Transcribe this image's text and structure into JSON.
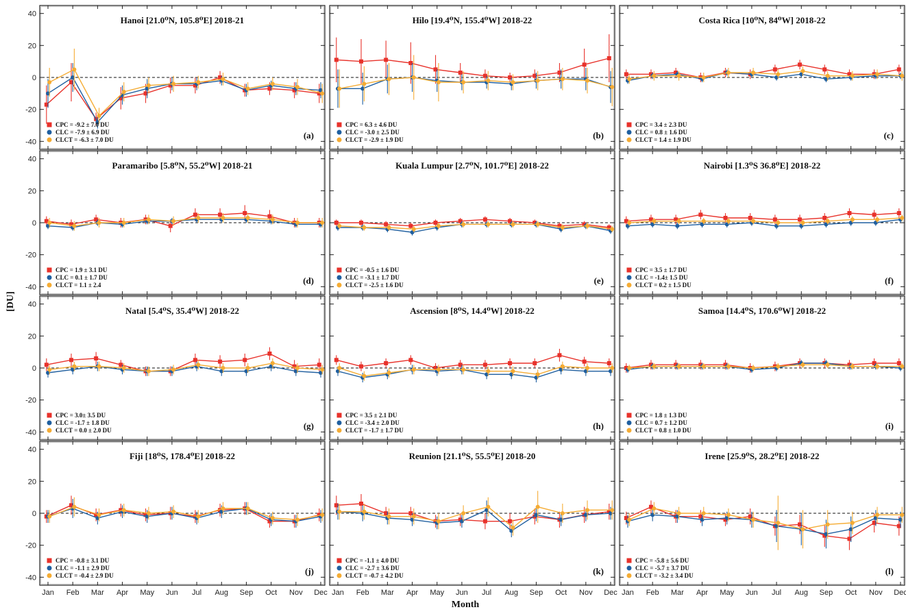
{
  "figure": {
    "ylabel": "[DU]",
    "xlabel": "Month",
    "months": [
      "Jan",
      "Feb",
      "Mar",
      "Apr",
      "May",
      "Jun",
      "Jul",
      "Aug",
      "Sep",
      "Oct",
      "Nov",
      "Dec"
    ],
    "yticks": [
      40,
      20,
      0,
      -20,
      -40
    ],
    "ylim": [
      -45,
      45
    ],
    "reference_line": 0
  },
  "series_styles": [
    {
      "key": "CPC",
      "color": "#e8322b",
      "marker": "square"
    },
    {
      "key": "CLC",
      "color": "#1f5fa0",
      "marker": "circle"
    },
    {
      "key": "CLCT",
      "color": "#f5ac34",
      "marker": "circle"
    }
  ],
  "chart_data": [
    {
      "type": "line",
      "panel": "(a)",
      "title": "Hanoi [21.0⁰N, 105.8⁰E] 2018-21",
      "stats": [
        "CPC = -9.2 ± 7.0 DU",
        "CLC = -7.9 ± 6.9 DU",
        "CLCT = -6.3 ± 7.0 DU"
      ],
      "series": [
        {
          "values": [
            -17,
            -3,
            -26,
            -13,
            -10,
            -5,
            -5,
            0,
            -8,
            -7,
            -8,
            -10
          ],
          "err": [
            12,
            12,
            4,
            7,
            6,
            5,
            5,
            4,
            4,
            4,
            5,
            6
          ]
        },
        {
          "values": [
            -10,
            0,
            -28,
            -11,
            -7,
            -4,
            -4,
            -2,
            -8,
            -5,
            -7,
            -8
          ],
          "err": [
            9,
            9,
            4,
            6,
            6,
            4,
            4,
            3,
            4,
            3,
            4,
            5
          ]
        },
        {
          "values": [
            -3,
            5,
            -24,
            -9,
            -5,
            -4,
            -3,
            -1,
            -7,
            -4,
            -6,
            -10
          ],
          "err": [
            9,
            13,
            5,
            6,
            5,
            5,
            4,
            4,
            4,
            4,
            5,
            6
          ]
        }
      ]
    },
    {
      "type": "line",
      "panel": "(b)",
      "title": "Hilo [19.4⁰N, 155.4⁰W] 2018-22",
      "stats": [
        "CPC = 6.3 ± 4.6 DU",
        "CLC = -3.0 ± 2.5 DU",
        "CLCT = -2.9 ± 1.9 DU"
      ],
      "series": [
        {
          "values": [
            11,
            10,
            11,
            9,
            5,
            3,
            1,
            0,
            1,
            3,
            8,
            12
          ],
          "err": [
            14,
            14,
            12,
            13,
            9,
            6,
            4,
            3,
            4,
            6,
            10,
            15
          ]
        },
        {
          "values": [
            -7,
            -7,
            -1,
            0,
            -2,
            -3,
            -3,
            -4,
            -2,
            -1,
            -1,
            -6
          ],
          "err": [
            12,
            10,
            9,
            9,
            7,
            5,
            4,
            4,
            5,
            6,
            7,
            10
          ]
        },
        {
          "values": [
            -7,
            -4,
            -1,
            0,
            -3,
            -3,
            -2,
            -3,
            -2,
            -1,
            -2,
            -6
          ],
          "err": [
            12,
            11,
            10,
            14,
            12,
            7,
            6,
            5,
            6,
            7,
            8,
            12
          ]
        }
      ]
    },
    {
      "type": "line",
      "panel": "(c)",
      "title": "Costa Rica [10⁰N, 84⁰W] 2018-22",
      "stats": [
        "CPC = 3.4 ± 2.3 DU",
        "CLC = 0.8 ± 1.6 DU",
        "CLCT = 1.4 ± 1.9 DU"
      ],
      "series": [
        {
          "values": [
            2,
            2,
            3,
            0,
            3,
            2,
            5,
            8,
            5,
            2,
            2,
            5
          ],
          "err": [
            3,
            3,
            3,
            3,
            3,
            3,
            3,
            3,
            3,
            3,
            3,
            3
          ]
        },
        {
          "values": [
            -2,
            1,
            2,
            -1,
            3,
            2,
            0,
            2,
            -1,
            0,
            1,
            1
          ],
          "err": [
            2,
            2,
            2,
            2,
            2,
            2,
            2,
            2,
            2,
            2,
            2,
            2
          ]
        },
        {
          "values": [
            -1,
            1,
            1,
            0,
            3,
            3,
            2,
            4,
            1,
            1,
            2,
            1
          ],
          "err": [
            3,
            3,
            3,
            3,
            3,
            3,
            3,
            3,
            3,
            3,
            3,
            3
          ]
        }
      ]
    },
    {
      "type": "line",
      "panel": "(d)",
      "title": "Paramaribo [5.8⁰N, 55.2⁰W] 2018-21",
      "stats": [
        "CPC = 1.9 ± 3.1 DU",
        "CLC = 0.1 ± 1.7 DU",
        "CLCT = 1.1 ± 2.4"
      ],
      "series": [
        {
          "values": [
            1,
            -1,
            2,
            0,
            2,
            -2,
            5,
            5,
            6,
            4,
            0,
            0
          ],
          "err": [
            3,
            3,
            3,
            3,
            3,
            4,
            4,
            4,
            5,
            4,
            3,
            3
          ]
        },
        {
          "values": [
            -2,
            -3,
            0,
            -1,
            1,
            1,
            2,
            2,
            2,
            1,
            -1,
            -1
          ],
          "err": [
            2,
            2,
            2,
            2,
            2,
            2,
            2,
            2,
            2,
            2,
            2,
            2
          ]
        },
        {
          "values": [
            0,
            -2,
            0,
            0,
            2,
            1,
            3,
            3,
            3,
            2,
            0,
            0
          ],
          "err": [
            3,
            3,
            3,
            3,
            3,
            3,
            3,
            3,
            3,
            3,
            3,
            3
          ]
        }
      ]
    },
    {
      "type": "line",
      "panel": "(e)",
      "title": "Kuala Lumpur [2.7⁰N, 101.7⁰E] 2018-22",
      "stats": [
        "CPC = -0.5 ± 1.6 DU",
        "CLC = -3.1 ± 1.7 DU",
        "CLCT = -2.5 ± 1.6 DU"
      ],
      "series": [
        {
          "values": [
            0,
            0,
            -1,
            -2,
            0,
            1,
            2,
            1,
            0,
            -2,
            -1,
            -3
          ],
          "err": [
            2,
            2,
            2,
            2,
            2,
            2,
            2,
            2,
            2,
            2,
            2,
            2
          ]
        },
        {
          "values": [
            -3,
            -3,
            -4,
            -6,
            -3,
            -1,
            -1,
            -1,
            -1,
            -4,
            -2,
            -5
          ],
          "err": [
            2,
            2,
            2,
            2,
            2,
            2,
            2,
            2,
            2,
            2,
            2,
            2
          ]
        },
        {
          "values": [
            -2,
            -3,
            -3,
            -4,
            -2,
            -1,
            -1,
            -1,
            -1,
            -3,
            -2,
            -4
          ],
          "err": [
            2,
            2,
            2,
            2,
            2,
            2,
            2,
            2,
            2,
            2,
            2,
            2
          ]
        }
      ]
    },
    {
      "type": "line",
      "panel": "(f)",
      "title": "Nairobi [1.3⁰S 36.8⁰E] 2018-22",
      "stats": [
        "CPC = 3.5 ± 1.7 DU",
        "CLC = -1.4± 1.5 DU",
        "CLCT = 0.2 ± 1.5 DU"
      ],
      "series": [
        {
          "values": [
            1,
            2,
            2,
            5,
            3,
            3,
            2,
            2,
            3,
            6,
            5,
            6
          ],
          "err": [
            3,
            3,
            3,
            3,
            3,
            3,
            3,
            3,
            3,
            3,
            3,
            3
          ]
        },
        {
          "values": [
            -2,
            -1,
            -2,
            -1,
            -1,
            0,
            -2,
            -2,
            -1,
            0,
            0,
            2
          ],
          "err": [
            2,
            2,
            2,
            2,
            2,
            2,
            2,
            2,
            2,
            2,
            2,
            2
          ]
        },
        {
          "values": [
            0,
            1,
            1,
            1,
            1,
            1,
            0,
            0,
            1,
            2,
            2,
            3
          ],
          "err": [
            2,
            2,
            2,
            2,
            2,
            2,
            2,
            2,
            2,
            2,
            2,
            2
          ]
        }
      ]
    },
    {
      "type": "line",
      "panel": "(g)",
      "title": "Natal [5.4⁰S, 35.4⁰W] 2018-22",
      "stats": [
        "CPC = 3.0± 3.5 DU",
        "CLC = -1.7 ± 1.8 DU",
        "CLCT = 0.0 ± 2.0 DU"
      ],
      "series": [
        {
          "values": [
            2,
            5,
            6,
            2,
            -2,
            -2,
            5,
            4,
            5,
            9,
            1,
            2
          ],
          "err": [
            4,
            4,
            4,
            3,
            3,
            3,
            4,
            4,
            4,
            4,
            4,
            4
          ]
        },
        {
          "values": [
            -3,
            -1,
            1,
            -1,
            -2,
            -2,
            1,
            -2,
            -2,
            1,
            -2,
            -3
          ],
          "err": [
            3,
            3,
            3,
            3,
            3,
            3,
            3,
            3,
            3,
            3,
            3,
            3
          ]
        },
        {
          "values": [
            -1,
            1,
            1,
            0,
            -2,
            -1,
            2,
            0,
            0,
            3,
            0,
            -1
          ],
          "err": [
            3,
            3,
            3,
            3,
            3,
            3,
            3,
            3,
            3,
            3,
            3,
            3
          ]
        }
      ]
    },
    {
      "type": "line",
      "panel": "(h)",
      "title": "Ascension [8⁰S, 14.4⁰W] 2018-22",
      "stats": [
        "CPC = 3.5 ± 2.1 DU",
        "CLC = -3.4 ± 2.0 DU",
        "CLCT = -1.7 ± 1.7 DU"
      ],
      "series": [
        {
          "values": [
            5,
            1,
            3,
            5,
            0,
            2,
            2,
            3,
            3,
            8,
            4,
            3
          ],
          "err": [
            3,
            3,
            3,
            3,
            3,
            3,
            3,
            3,
            3,
            4,
            3,
            3
          ]
        },
        {
          "values": [
            -2,
            -6,
            -4,
            -1,
            -2,
            -1,
            -4,
            -4,
            -6,
            -1,
            -2,
            -2
          ],
          "err": [
            3,
            3,
            3,
            3,
            3,
            3,
            3,
            3,
            3,
            3,
            3,
            3
          ]
        },
        {
          "values": [
            0,
            -5,
            -3,
            -1,
            -1,
            -1,
            -2,
            -2,
            -4,
            1,
            0,
            0
          ],
          "err": [
            3,
            3,
            3,
            3,
            3,
            3,
            3,
            3,
            3,
            3,
            3,
            3
          ]
        }
      ]
    },
    {
      "type": "line",
      "panel": "(i)",
      "title": "Samoa [14.4⁰S, 170.6⁰W] 2018-22",
      "stats": [
        "CPC = 1.8 ± 1.3 DU",
        "CLC = 0.7 ± 1.2 DU",
        "CLCT = 0.8 ± 1.0 DU"
      ],
      "series": [
        {
          "values": [
            0,
            2,
            2,
            2,
            2,
            0,
            1,
            3,
            3,
            2,
            3,
            3
          ],
          "err": [
            3,
            3,
            3,
            3,
            3,
            3,
            3,
            3,
            3,
            3,
            3,
            3
          ]
        },
        {
          "values": [
            -1,
            1,
            1,
            1,
            1,
            -1,
            0,
            3,
            3,
            1,
            1,
            0
          ],
          "err": [
            2,
            2,
            2,
            2,
            2,
            2,
            2,
            2,
            2,
            2,
            2,
            2
          ]
        },
        {
          "values": [
            0,
            1,
            1,
            1,
            1,
            0,
            1,
            2,
            2,
            1,
            1,
            1
          ],
          "err": [
            2,
            2,
            2,
            2,
            2,
            2,
            2,
            2,
            2,
            2,
            2,
            2
          ]
        }
      ]
    },
    {
      "type": "line",
      "panel": "(j)",
      "title": "Fiji [18⁰S, 178.4⁰E] 2018-22",
      "stats": [
        "CPC = -0.8 ± 3.1 DU",
        "CLC = -1.1 ± 2.9 DU",
        "CLCT = -0.4 ± 2.9 DU"
      ],
      "series": [
        {
          "values": [
            -2,
            5,
            -1,
            2,
            -1,
            0,
            -2,
            2,
            3,
            -5,
            -5,
            -1
          ],
          "err": [
            4,
            6,
            4,
            4,
            4,
            4,
            4,
            4,
            4,
            4,
            4,
            4
          ]
        },
        {
          "values": [
            -2,
            3,
            -3,
            1,
            -2,
            0,
            -3,
            1,
            3,
            -4,
            -5,
            -2
          ],
          "err": [
            4,
            6,
            4,
            4,
            4,
            4,
            4,
            4,
            4,
            4,
            4,
            4
          ]
        },
        {
          "values": [
            -2,
            4,
            -1,
            2,
            0,
            1,
            -2,
            3,
            3,
            -3,
            -4,
            -1
          ],
          "err": [
            4,
            6,
            4,
            4,
            4,
            4,
            4,
            4,
            4,
            4,
            4,
            4
          ]
        }
      ]
    },
    {
      "type": "line",
      "panel": "(k)",
      "title": "Reunion [21.1⁰S, 55.5⁰E] 2018-20",
      "stats": [
        "CPC = -1.1 ± 4.0 DU",
        "CLC = -2.7 ± 3.6 DU",
        "CLCT = -0.7 ± 4.2 DU"
      ],
      "series": [
        {
          "values": [
            5,
            6,
            0,
            0,
            -5,
            -4,
            -5,
            -5,
            -2,
            -4,
            -1,
            1
          ],
          "err": [
            6,
            6,
            4,
            4,
            4,
            4,
            5,
            5,
            5,
            5,
            5,
            5
          ]
        },
        {
          "values": [
            1,
            0,
            -3,
            -4,
            -6,
            -5,
            2,
            -11,
            -1,
            -4,
            -1,
            0
          ],
          "err": [
            5,
            5,
            4,
            4,
            4,
            4,
            6,
            4,
            4,
            4,
            4,
            4
          ]
        },
        {
          "values": [
            1,
            1,
            -2,
            -2,
            -5,
            0,
            4,
            -9,
            4,
            0,
            2,
            2
          ],
          "err": [
            5,
            5,
            5,
            5,
            5,
            5,
            6,
            5,
            10,
            6,
            6,
            6
          ]
        }
      ]
    },
    {
      "type": "line",
      "panel": "(l)",
      "title": "Irene [25.9⁰S, 28.2⁰E] 2018-22",
      "stats": [
        "CPC = -5.8 ± 5.6 DU",
        "CLC = -5.7 ± 3.7 DU",
        "CLCT = -3.2 ± 3.4 DU"
      ],
      "series": [
        {
          "values": [
            -3,
            4,
            -2,
            -2,
            -4,
            -2,
            -8,
            -7,
            -14,
            -16,
            -6,
            -8
          ],
          "err": [
            4,
            4,
            4,
            4,
            4,
            5,
            6,
            6,
            7,
            7,
            6,
            6
          ]
        },
        {
          "values": [
            -5,
            -1,
            -2,
            -4,
            -3,
            -4,
            -8,
            -10,
            -13,
            -10,
            -3,
            -4
          ],
          "err": [
            4,
            4,
            4,
            4,
            4,
            5,
            10,
            10,
            9,
            8,
            5,
            5
          ]
        },
        {
          "values": [
            -4,
            3,
            0,
            0,
            -1,
            -4,
            -6,
            -10,
            -7,
            -6,
            -1,
            -1
          ],
          "err": [
            4,
            4,
            4,
            4,
            4,
            5,
            17,
            12,
            9,
            7,
            5,
            5
          ]
        }
      ]
    }
  ]
}
